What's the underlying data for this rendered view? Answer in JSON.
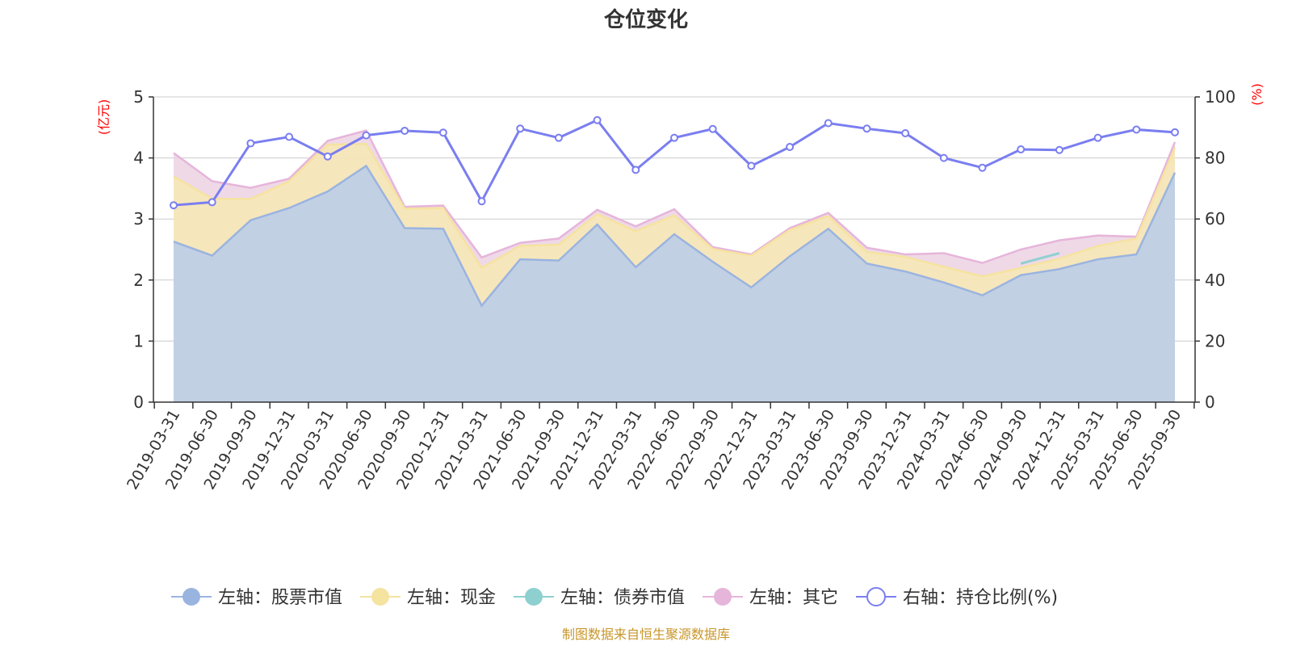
{
  "colors": {
    "stock": "#9ab4e0",
    "stock_fill": "#b8cbea",
    "cash": "#f5e3a0",
    "cash_fill": "#f7e8b3",
    "bond": "#8ed0d0",
    "other": "#e6b5da",
    "other_fill": "#ecd2e3",
    "ratio": "#7a7ef0",
    "unit": "#ff0000",
    "source": "#c8962a",
    "axis": "#333333",
    "grid": "#cccccc"
  },
  "chart_data": {
    "type": "area",
    "title": "仓位变化",
    "source_note": "制图数据来自恒生聚源数据库",
    "left_axis": {
      "unit": "(亿元)",
      "ylim": [
        0,
        5
      ],
      "ticks": [
        "0",
        "1",
        "2",
        "3",
        "4",
        "5"
      ]
    },
    "right_axis": {
      "unit": "(%)",
      "ylim": [
        0,
        100
      ],
      "ticks": [
        "0",
        "20",
        "40",
        "60",
        "80",
        "100"
      ]
    },
    "grid": true,
    "legend_position": "bottom",
    "categories": [
      "2019-03-31",
      "2019-06-30",
      "2019-09-30",
      "2019-12-31",
      "2020-03-31",
      "2020-06-30",
      "2020-09-30",
      "2020-12-31",
      "2021-03-31",
      "2021-06-30",
      "2021-09-30",
      "2021-12-31",
      "2022-03-31",
      "2022-06-30",
      "2022-09-30",
      "2022-12-31",
      "2023-03-31",
      "2023-06-30",
      "2023-09-30",
      "2023-12-31",
      "2024-03-31",
      "2024-06-30",
      "2024-09-30",
      "2024-12-31",
      "2025-03-31",
      "2025-06-30",
      "2025-09-30"
    ],
    "series": [
      {
        "name": "左轴：股票市值",
        "axis": "left",
        "type": "stacked-area",
        "values": [
          2.63,
          2.4,
          2.98,
          3.18,
          3.45,
          3.87,
          2.85,
          2.84,
          1.58,
          2.34,
          2.32,
          2.91,
          2.21,
          2.75,
          2.3,
          1.88,
          2.39,
          2.84,
          2.27,
          2.14,
          1.96,
          1.75,
          2.08,
          2.18,
          2.34,
          2.42,
          3.76
        ]
      },
      {
        "name": "左轴：现金",
        "axis": "left",
        "type": "stacked-area",
        "values": [
          1.07,
          0.93,
          0.35,
          0.44,
          0.77,
          0.36,
          0.32,
          0.34,
          0.62,
          0.22,
          0.26,
          0.17,
          0.59,
          0.31,
          0.21,
          0.52,
          0.43,
          0.21,
          0.19,
          0.24,
          0.26,
          0.31,
          0.12,
          0.17,
          0.22,
          0.26,
          0.41
        ]
      },
      {
        "name": "左轴：债券市值",
        "axis": "left",
        "type": "stacked-area",
        "values": [
          0,
          0,
          0,
          0,
          0,
          0,
          0,
          0,
          0,
          0,
          0,
          0,
          0,
          0,
          0,
          0,
          0,
          0,
          0,
          0,
          0,
          0,
          0.07,
          0.09,
          0,
          0,
          0
        ]
      },
      {
        "name": "左轴：其它",
        "axis": "left",
        "type": "stacked-area",
        "values": [
          0.38,
          0.29,
          0.18,
          0.04,
          0.06,
          0.22,
          0.03,
          0.04,
          0.17,
          0.05,
          0.1,
          0.07,
          0.08,
          0.1,
          0.03,
          0.02,
          0.03,
          0.05,
          0.07,
          0.04,
          0.22,
          0.22,
          0.23,
          0.21,
          0.17,
          0.03,
          0.09
        ]
      },
      {
        "name": "右轴：持仓比例(%)",
        "axis": "right",
        "type": "line",
        "values": [
          64.5,
          65.5,
          84.8,
          86.9,
          80.5,
          87.4,
          88.9,
          88.3,
          65.8,
          89.6,
          86.6,
          92.4,
          76.1,
          86.6,
          89.5,
          77.4,
          83.6,
          91.4,
          89.6,
          88.1,
          80.0,
          76.8,
          82.8,
          82.6,
          86.6,
          89.3,
          88.4
        ]
      }
    ]
  }
}
